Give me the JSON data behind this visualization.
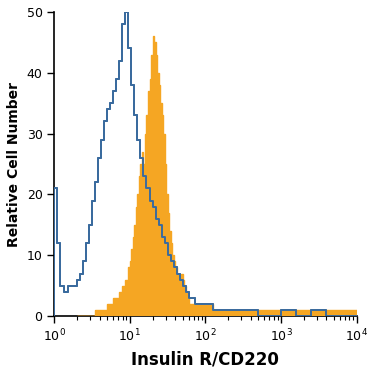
{
  "title": "",
  "xlabel": "Insulin R/CD220",
  "ylabel": "Relative Cell Number",
  "xlim_log": [
    0,
    4
  ],
  "ylim": [
    0,
    50
  ],
  "yticks": [
    0,
    10,
    20,
    30,
    40,
    50
  ],
  "blue_color": "#3a6b9e",
  "orange_color": "#f5a623",
  "background_color": "#ffffff",
  "xlabel_fontsize": 12,
  "ylabel_fontsize": 10,
  "tick_fontsize": 9,
  "blue_linewidth": 1.4,
  "orange_linewidth": 0.7,
  "blue_bins_log": [
    0.0,
    0.04,
    0.08,
    0.13,
    0.18,
    0.22,
    0.26,
    0.3,
    0.34,
    0.38,
    0.42,
    0.46,
    0.5,
    0.54,
    0.58,
    0.62,
    0.66,
    0.7,
    0.74,
    0.78,
    0.82,
    0.86,
    0.9,
    0.94,
    0.98,
    1.02,
    1.06,
    1.1,
    1.14,
    1.18,
    1.22,
    1.26,
    1.3,
    1.34,
    1.38,
    1.42,
    1.46,
    1.5,
    1.54,
    1.58,
    1.62,
    1.66,
    1.7,
    1.74,
    1.78,
    1.82,
    1.86,
    1.9,
    1.95,
    2.0,
    2.1,
    2.2,
    2.3,
    2.4,
    2.5,
    2.6,
    2.7,
    2.8,
    2.9,
    3.0,
    3.2,
    3.4,
    3.6,
    3.8,
    4.0
  ],
  "blue_heights": [
    21,
    12,
    5,
    4,
    5,
    5,
    5,
    6,
    7,
    9,
    12,
    15,
    19,
    22,
    26,
    29,
    32,
    34,
    35,
    37,
    39,
    42,
    48,
    50,
    44,
    38,
    33,
    29,
    26,
    23,
    21,
    19,
    18,
    16,
    15,
    13,
    12,
    10,
    9,
    8,
    7,
    6,
    5,
    4,
    3,
    3,
    2,
    2,
    2,
    2,
    1,
    1,
    1,
    1,
    1,
    1,
    0,
    0,
    0,
    1,
    0,
    1,
    0,
    0
  ],
  "orange_bins_log": [
    0.3,
    0.38,
    0.46,
    0.54,
    0.62,
    0.7,
    0.78,
    0.85,
    0.9,
    0.94,
    0.98,
    1.0,
    1.02,
    1.04,
    1.06,
    1.08,
    1.1,
    1.12,
    1.14,
    1.16,
    1.18,
    1.2,
    1.22,
    1.24,
    1.26,
    1.28,
    1.3,
    1.32,
    1.34,
    1.36,
    1.38,
    1.4,
    1.42,
    1.44,
    1.46,
    1.48,
    1.5,
    1.52,
    1.54,
    1.56,
    1.58,
    1.6,
    1.62,
    1.64,
    1.66,
    1.68,
    1.7,
    1.72,
    1.74,
    1.76,
    1.78,
    1.82,
    1.86,
    1.9,
    1.94,
    1.98,
    2.02,
    2.06,
    2.1,
    2.15,
    2.2,
    2.28,
    2.36,
    2.44,
    2.52,
    2.6,
    2.7,
    2.8,
    2.9,
    3.0,
    3.2,
    3.4,
    3.6,
    3.8,
    4.0
  ],
  "orange_heights": [
    0,
    0,
    0,
    1,
    1,
    2,
    3,
    4,
    5,
    6,
    8,
    9,
    11,
    13,
    15,
    18,
    20,
    23,
    25,
    27,
    25,
    30,
    33,
    37,
    39,
    43,
    46,
    45,
    43,
    40,
    38,
    35,
    33,
    30,
    25,
    20,
    17,
    14,
    12,
    10,
    9,
    8,
    7,
    6,
    6,
    7,
    6,
    5,
    4,
    3,
    2,
    2,
    2,
    2,
    2,
    2,
    2,
    2,
    1,
    1,
    1,
    1,
    1,
    1,
    1,
    1,
    1,
    1,
    1,
    1,
    1,
    1,
    1,
    1
  ]
}
